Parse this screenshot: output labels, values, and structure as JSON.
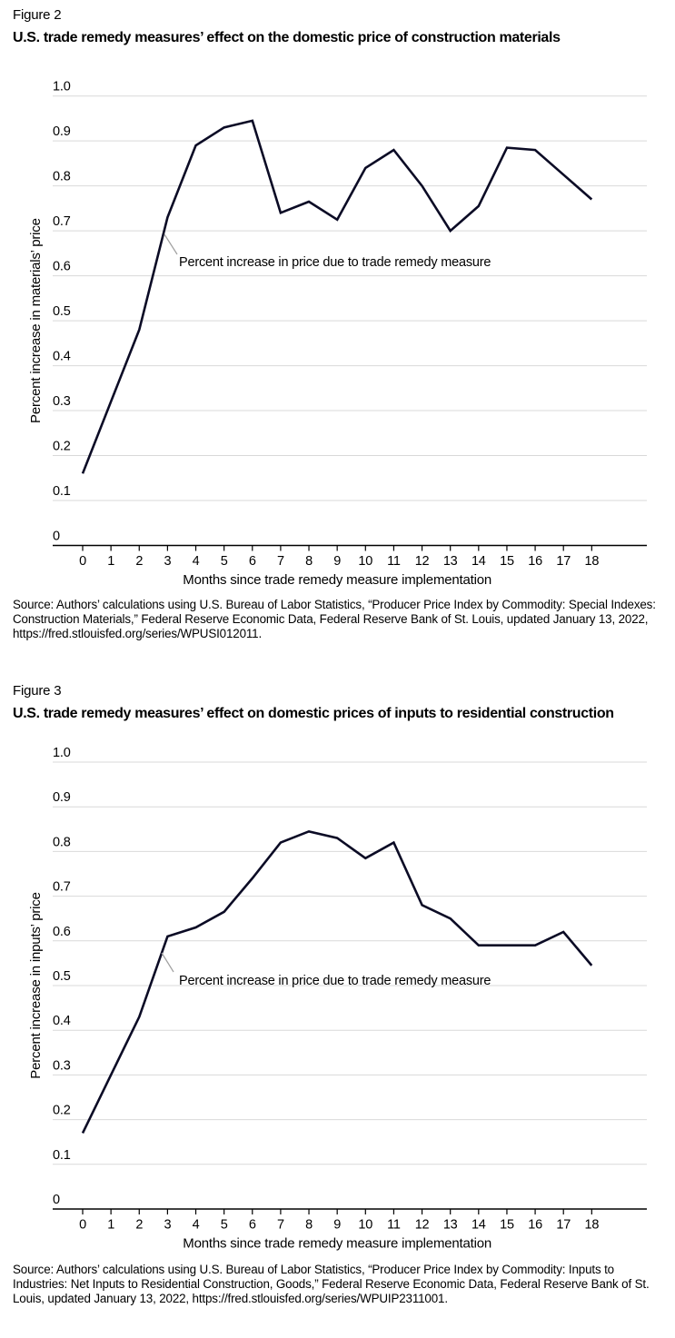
{
  "colors": {
    "line": "#0b0b25",
    "grid": "#d9d9d9",
    "axis": "#000000",
    "annotation_pointer": "#a0a0a0",
    "text": "#000000",
    "background": "#ffffff"
  },
  "chart_data": [
    {
      "type": "line",
      "figure_label": "Figure 2",
      "title": "U.S. trade remedy measures’ effect on the domestic price of construction materials",
      "x": [
        0,
        1,
        2,
        3,
        4,
        5,
        6,
        7,
        8,
        9,
        10,
        11,
        12,
        13,
        14,
        15,
        16,
        17,
        18
      ],
      "values": [
        0.16,
        0.32,
        0.48,
        0.73,
        0.89,
        0.93,
        0.945,
        0.74,
        0.765,
        0.725,
        0.84,
        0.88,
        0.8,
        0.7,
        0.755,
        0.885,
        0.88,
        0.825,
        0.77
      ],
      "xlabel": "Months since trade remedy measure implementation",
      "ylabel": "Percent increase in materials’ price",
      "ylim": [
        0,
        1.0
      ],
      "ytick_step": 0.1,
      "ytick_labels": [
        "0",
        "0.1",
        "0.2",
        "0.3",
        "0.4",
        "0.5",
        "0.6",
        "0.7",
        "0.8",
        "0.9",
        "1.0"
      ],
      "grid": true,
      "legend": "none",
      "annotation": "Percent increase in price due to trade remedy measure",
      "source": "Source: Authors’ calculations using U.S. Bureau of Labor Statistics, “Producer Price Index by Commodity: Special Indexes: Construction Materials,” Federal Reserve Economic Data, Federal Reserve Bank of St. Louis, updated January 13, 2022, https://fred.stlouisfed.org/series/WPUSI012011."
    },
    {
      "type": "line",
      "figure_label": "Figure 3",
      "title": "U.S. trade remedy measures’ effect on domestic prices of inputs to residential construction",
      "x": [
        0,
        1,
        2,
        3,
        4,
        5,
        6,
        7,
        8,
        9,
        10,
        11,
        12,
        13,
        14,
        15,
        16,
        17,
        18
      ],
      "values": [
        0.17,
        0.3,
        0.43,
        0.61,
        0.63,
        0.665,
        0.74,
        0.82,
        0.845,
        0.83,
        0.785,
        0.82,
        0.68,
        0.65,
        0.59,
        0.59,
        0.59,
        0.62,
        0.545
      ],
      "xlabel": "Months since trade remedy measure implementation",
      "ylabel": "Percent increase in inputs’ price",
      "ylim": [
        0,
        1.0
      ],
      "ytick_step": 0.1,
      "ytick_labels": [
        "0",
        "0.1",
        "0.2",
        "0.3",
        "0.4",
        "0.5",
        "0.6",
        "0.7",
        "0.8",
        "0.9",
        "1.0"
      ],
      "grid": true,
      "legend": "none",
      "annotation": "Percent increase in price due to trade remedy measure",
      "source": "Source: Authors’ calculations using U.S. Bureau of Labor Statistics, “Producer Price Index by Commodity: Inputs to Industries: Net Inputs to Residential Construction, Goods,” Federal Reserve Economic Data, Federal Reserve Bank of St. Louis, updated January 13, 2022, https://fred.stlouisfed.org/series/WPUIP2311001."
    }
  ]
}
